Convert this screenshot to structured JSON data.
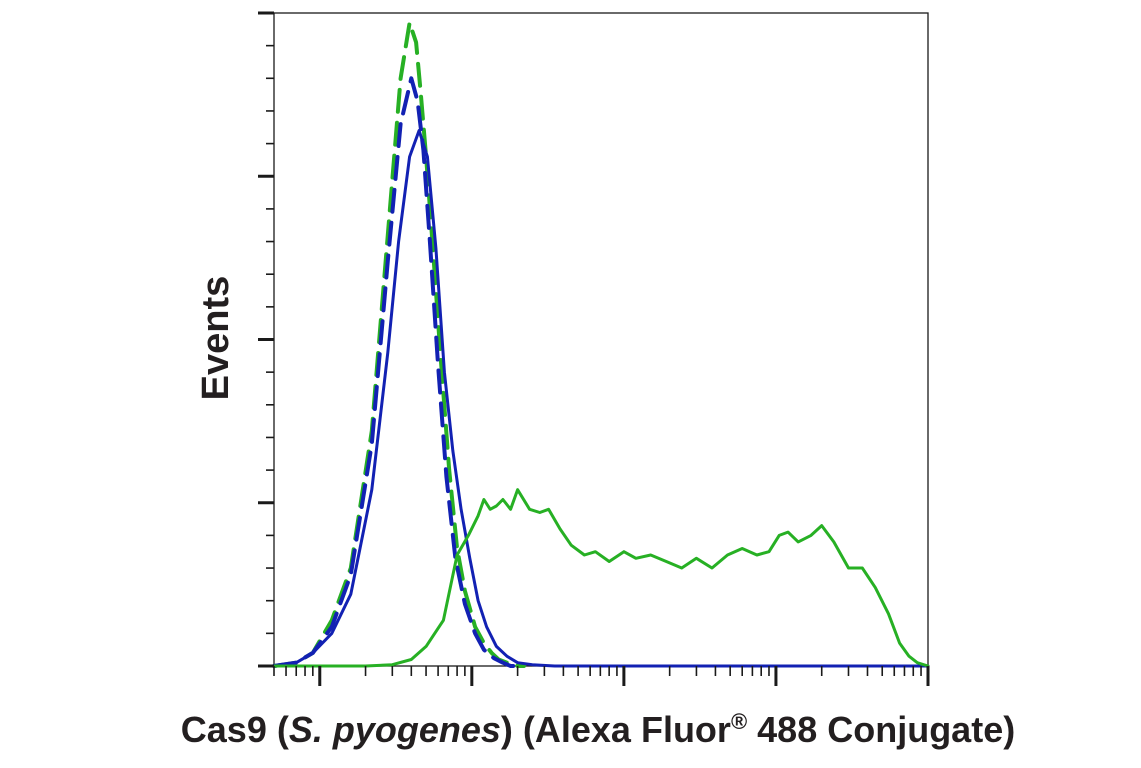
{
  "chart_data": {
    "type": "line",
    "title": "",
    "xlabel": {
      "prefix": "Cas9 (",
      "italic": "S. pyogenes",
      "middle": ") (Alexa Fluor",
      "sup": "®",
      "suffix": " 488 Conjugate)"
    },
    "ylabel": "Events",
    "x_scale": "log",
    "xlim": [
      0.5,
      10000
    ],
    "ylim": [
      0,
      1000
    ],
    "x_major_ticks": [
      1,
      10,
      100,
      1000,
      10000
    ],
    "y_major_ticks": [
      0,
      250,
      500,
      750,
      1000
    ],
    "grid": false,
    "legend": "none",
    "series": [
      {
        "color": "#27b024",
        "dash": true,
        "x": [
          0.5,
          0.7,
          0.9,
          1.2,
          1.6,
          2.2,
          2.8,
          3.4,
          3.9,
          4.3,
          4.6,
          5.0,
          5.5,
          6.2,
          7.1,
          8.0,
          9.0,
          10.5,
          12.0,
          13.5,
          15,
          17,
          19,
          20,
          22
        ],
        "y": [
          0,
          5,
          20,
          70,
          150,
          360,
          660,
          900,
          985,
          955,
          880,
          780,
          650,
          480,
          300,
          180,
          115,
          60,
          35,
          20,
          10,
          5,
          2,
          0,
          0
        ]
      },
      {
        "color": "#1221b3",
        "dash": true,
        "x": [
          0.5,
          0.7,
          0.9,
          1.2,
          1.6,
          2.2,
          2.8,
          3.4,
          4.0,
          4.4,
          4.8,
          5.3,
          6.0,
          6.8,
          7.8,
          9.0,
          10.5,
          12.0,
          14.0,
          16,
          18,
          20
        ],
        "y": [
          0,
          5,
          20,
          60,
          140,
          340,
          620,
          830,
          900,
          865,
          790,
          650,
          460,
          290,
          165,
          95,
          50,
          25,
          12,
          5,
          0,
          0
        ]
      },
      {
        "color": "#1221b3",
        "dash": false,
        "x": [
          0.5,
          0.7,
          0.9,
          1.2,
          1.6,
          2.2,
          2.8,
          3.3,
          3.9,
          4.5,
          5.1,
          5.8,
          6.6,
          7.5,
          8.5,
          9.7,
          11.0,
          12.5,
          14.5,
          17,
          20,
          25,
          35,
          60,
          100,
          1000,
          10000
        ],
        "y": [
          0,
          5,
          20,
          50,
          110,
          270,
          480,
          650,
          780,
          820,
          780,
          640,
          450,
          330,
          240,
          165,
          100,
          60,
          30,
          15,
          5,
          2,
          0,
          0,
          0,
          0,
          0
        ]
      },
      {
        "color": "#27b024",
        "dash": false,
        "x": [
          0.5,
          1,
          2,
          3,
          4,
          5,
          6.5,
          8,
          9.5,
          11,
          12,
          13.2,
          14.5,
          16,
          18,
          20,
          24,
          28,
          32,
          38,
          45,
          55,
          65,
          80,
          100,
          120,
          150,
          190,
          240,
          300,
          380,
          480,
          600,
          750,
          900,
          1050,
          1200,
          1400,
          1700,
          2000,
          2400,
          3000,
          3700,
          4500,
          5500,
          6500,
          7500,
          8500,
          10000
        ],
        "y": [
          0,
          0,
          0,
          2,
          10,
          30,
          70,
          170,
          200,
          230,
          255,
          240,
          245,
          255,
          240,
          270,
          240,
          235,
          240,
          210,
          185,
          170,
          175,
          160,
          175,
          165,
          170,
          160,
          150,
          165,
          150,
          170,
          180,
          170,
          175,
          200,
          205,
          190,
          200,
          215,
          190,
          150,
          150,
          120,
          80,
          35,
          15,
          5,
          0
        ]
      }
    ]
  }
}
